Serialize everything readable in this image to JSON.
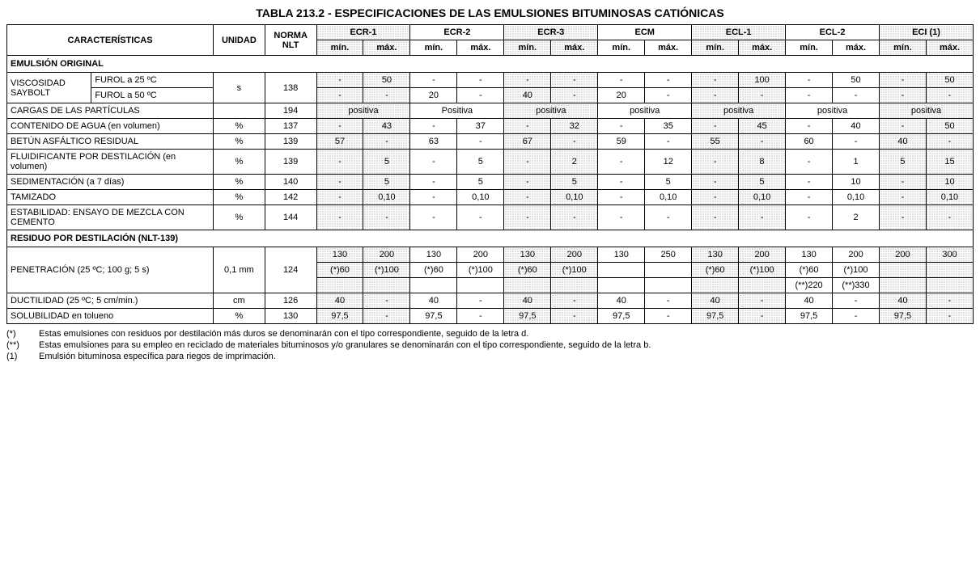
{
  "title": "TABLA 213.2 - ESPECIFICACIONES DE LAS EMULSIONES BITUMINOSAS CATIÓNICAS",
  "head": {
    "caracteristicas": "CARACTERÍSTICAS",
    "unidad": "UNIDAD",
    "norma": "NORMA NLT",
    "min": "mín.",
    "max": "máx.",
    "emulsions": [
      "ECR-1",
      "ECR-2",
      "ECR-3",
      "ECM",
      "ECL-1",
      "ECL-2",
      "ECI (1)"
    ],
    "shaded": [
      true,
      false,
      true,
      false,
      true,
      false,
      true
    ]
  },
  "sectionA": "EMULSIÓN ORIGINAL",
  "sectionB": "RESIDUO POR DESTILACIÓN (NLT-139)",
  "rows": {
    "visc_label": "VISCOSIDAD SAYBOLT",
    "visc25_label": "FUROL a 25 ºC",
    "visc50_label": "FUROL a 50 ºC",
    "visc_unidad": "s",
    "visc_norma": "138",
    "visc25": [
      [
        "-",
        "50"
      ],
      [
        "-",
        "-"
      ],
      [
        "-",
        "-"
      ],
      [
        "-",
        "-"
      ],
      [
        "-",
        "100"
      ],
      [
        "-",
        "50"
      ],
      [
        "-",
        "50"
      ]
    ],
    "visc50": [
      [
        "-",
        "-"
      ],
      [
        "20",
        "-"
      ],
      [
        "40",
        "-"
      ],
      [
        "20",
        "-"
      ],
      [
        "-",
        "-"
      ],
      [
        "-",
        "-"
      ],
      [
        "-",
        "-"
      ]
    ],
    "cargas_label": "CARGAS DE LAS PARTÍCULAS",
    "cargas_un": "",
    "cargas_n": "194",
    "cargas": [
      "positiva",
      "Positiva",
      "positiva",
      "positiva",
      "positiva",
      "positiva",
      "positiva"
    ],
    "agua_label": "CONTENIDO DE AGUA (en volumen)",
    "agua_un": "%",
    "agua_n": "137",
    "agua": [
      [
        "-",
        "43"
      ],
      [
        "-",
        "37"
      ],
      [
        "-",
        "32"
      ],
      [
        "-",
        "35"
      ],
      [
        "-",
        "45"
      ],
      [
        "-",
        "40"
      ],
      [
        "-",
        "50"
      ]
    ],
    "betun_label": "BETÚN ASFÁLTICO RESIDUAL",
    "betun_un": "%",
    "betun_n": "139",
    "betun": [
      [
        "57",
        "-"
      ],
      [
        "63",
        "-"
      ],
      [
        "67",
        "-"
      ],
      [
        "59",
        "-"
      ],
      [
        "55",
        "-"
      ],
      [
        "60",
        "-"
      ],
      [
        "40",
        "-"
      ]
    ],
    "fluid_label": "FLUIDIFICANTE POR DESTILACIÓN (en volumen)",
    "fluid_un": "%",
    "fluid_n": "139",
    "fluid": [
      [
        "-",
        "5"
      ],
      [
        "-",
        "5"
      ],
      [
        "-",
        "2"
      ],
      [
        "-",
        "12"
      ],
      [
        "-",
        "8"
      ],
      [
        "-",
        "1"
      ],
      [
        "5",
        "15"
      ]
    ],
    "sed_label": "SEDIMENTACIÓN (a 7 días)",
    "sed_un": "%",
    "sed_n": "140",
    "sed": [
      [
        "-",
        "5"
      ],
      [
        "-",
        "5"
      ],
      [
        "-",
        "5"
      ],
      [
        "-",
        "5"
      ],
      [
        "-",
        "5"
      ],
      [
        "-",
        "10"
      ],
      [
        "-",
        "10"
      ]
    ],
    "tam_label": "TAMIZADO",
    "tam_un": "%",
    "tam_n": "142",
    "tam": [
      [
        "-",
        "0,10"
      ],
      [
        "-",
        "0,10"
      ],
      [
        "-",
        "0,10"
      ],
      [
        "-",
        "0,10"
      ],
      [
        "-",
        "0,10"
      ],
      [
        "-",
        "0,10"
      ],
      [
        "-",
        "0,10"
      ]
    ],
    "estab_label": "ESTABILIDAD: ENSAYO DE MEZCLA CON CEMENTO",
    "estab_un": "%",
    "estab_n": "144",
    "estab": [
      [
        "-",
        "-"
      ],
      [
        "-",
        "-"
      ],
      [
        "-",
        "-"
      ],
      [
        "-",
        "-"
      ],
      [
        "-",
        "-"
      ],
      [
        "-",
        "2"
      ],
      [
        "-",
        "-"
      ]
    ],
    "pen_label": "PENETRACIÓN (25 ºC; 100 g; 5 s)",
    "pen_un": "0,1 mm",
    "pen_n": "124",
    "pen1": [
      [
        "130",
        "200"
      ],
      [
        "130",
        "200"
      ],
      [
        "130",
        "200"
      ],
      [
        "130",
        "250"
      ],
      [
        "130",
        "200"
      ],
      [
        "130",
        "200"
      ],
      [
        "200",
        "300"
      ]
    ],
    "pen2": [
      [
        "(*)60",
        "(*)100"
      ],
      [
        "(*)60",
        "(*)100"
      ],
      [
        "(*)60",
        "(*)100"
      ],
      [
        "",
        ""
      ],
      [
        "(*)60",
        "(*)100"
      ],
      [
        "(*)60",
        "(*)100"
      ],
      [
        "",
        ""
      ]
    ],
    "pen3": [
      [
        "",
        ""
      ],
      [
        "",
        ""
      ],
      [
        "",
        ""
      ],
      [
        "",
        ""
      ],
      [
        "",
        ""
      ],
      [
        "(**)220",
        "(**)330"
      ],
      [
        "",
        ""
      ]
    ],
    "duc_label": "DUCTILIDAD (25 ºC; 5 cm/min.)",
    "duc_un": "cm",
    "duc_n": "126",
    "duc": [
      [
        "40",
        "-"
      ],
      [
        "40",
        "-"
      ],
      [
        "40",
        "-"
      ],
      [
        "40",
        "-"
      ],
      [
        "40",
        "-"
      ],
      [
        "40",
        "-"
      ],
      [
        "40",
        "-"
      ]
    ],
    "sol_label": "SOLUBILIDAD en tolueno",
    "sol_un": "%",
    "sol_n": "130",
    "sol": [
      [
        "97,5",
        "-"
      ],
      [
        "97,5",
        "-"
      ],
      [
        "97,5",
        "-"
      ],
      [
        "97,5",
        "-"
      ],
      [
        "97,5",
        "-"
      ],
      [
        "97,5",
        "-"
      ],
      [
        "97,5",
        "-"
      ]
    ]
  },
  "notes": {
    "n1s": "(*)",
    "n1": "Estas emulsiones con residuos por destilación más duros se denominarán con el tipo correspondiente, seguido de la letra d.",
    "n2s": "(**)",
    "n2": "Estas emulsiones para su empleo en reciclado de materiales bituminosos y/o granulares se denominarán con el tipo correspondiente, seguido de la letra b.",
    "n3s": "(1)",
    "n3": "Emulsión bituminosa específica para riegos de imprimación."
  },
  "colwidths": {
    "c1": "90px",
    "c2": "130px",
    "c3": "55px",
    "c4": "55px",
    "mm": "50px"
  }
}
